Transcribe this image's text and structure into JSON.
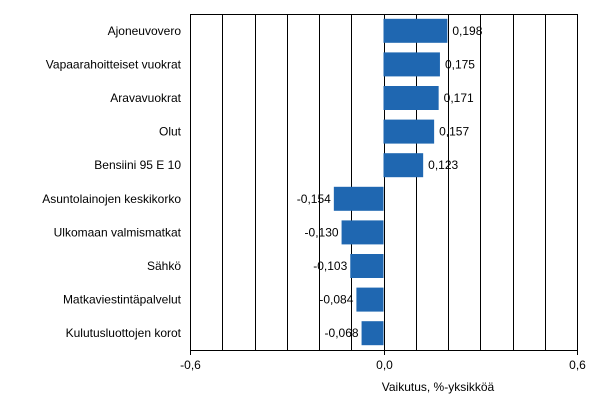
{
  "chart_data": {
    "type": "bar",
    "orientation": "horizontal",
    "categories": [
      "Ajoneuvovero",
      "Vapaarahoitteiset vuokrat",
      "Aravavuokrat",
      "Olut",
      "Bensiini 95 E 10",
      "Asuntolainojen keskikorko",
      "Ulkomaan valmismatkat",
      "Sähkö",
      "Matkaviestintäpalvelut",
      "Kulutusluottojen korot"
    ],
    "values": [
      0.198,
      0.175,
      0.171,
      0.157,
      0.123,
      -0.154,
      -0.13,
      -0.103,
      -0.084,
      -0.068
    ],
    "value_labels": [
      "0,198",
      "0,175",
      "0,171",
      "0,157",
      "0,123",
      "-0,154",
      "-0,130",
      "-0,103",
      "-0,084",
      "-0,068"
    ],
    "xlabel": "Vaikutus, %-yksikköä",
    "xlim": [
      -0.6,
      0.6
    ],
    "xticks": [
      -0.6,
      0.0,
      0.6
    ],
    "xtick_labels": [
      "-0,6",
      "0,0",
      "0,6"
    ],
    "grid": "vertical",
    "bar_color": "#1f67b1",
    "grid_color": "#000000"
  }
}
